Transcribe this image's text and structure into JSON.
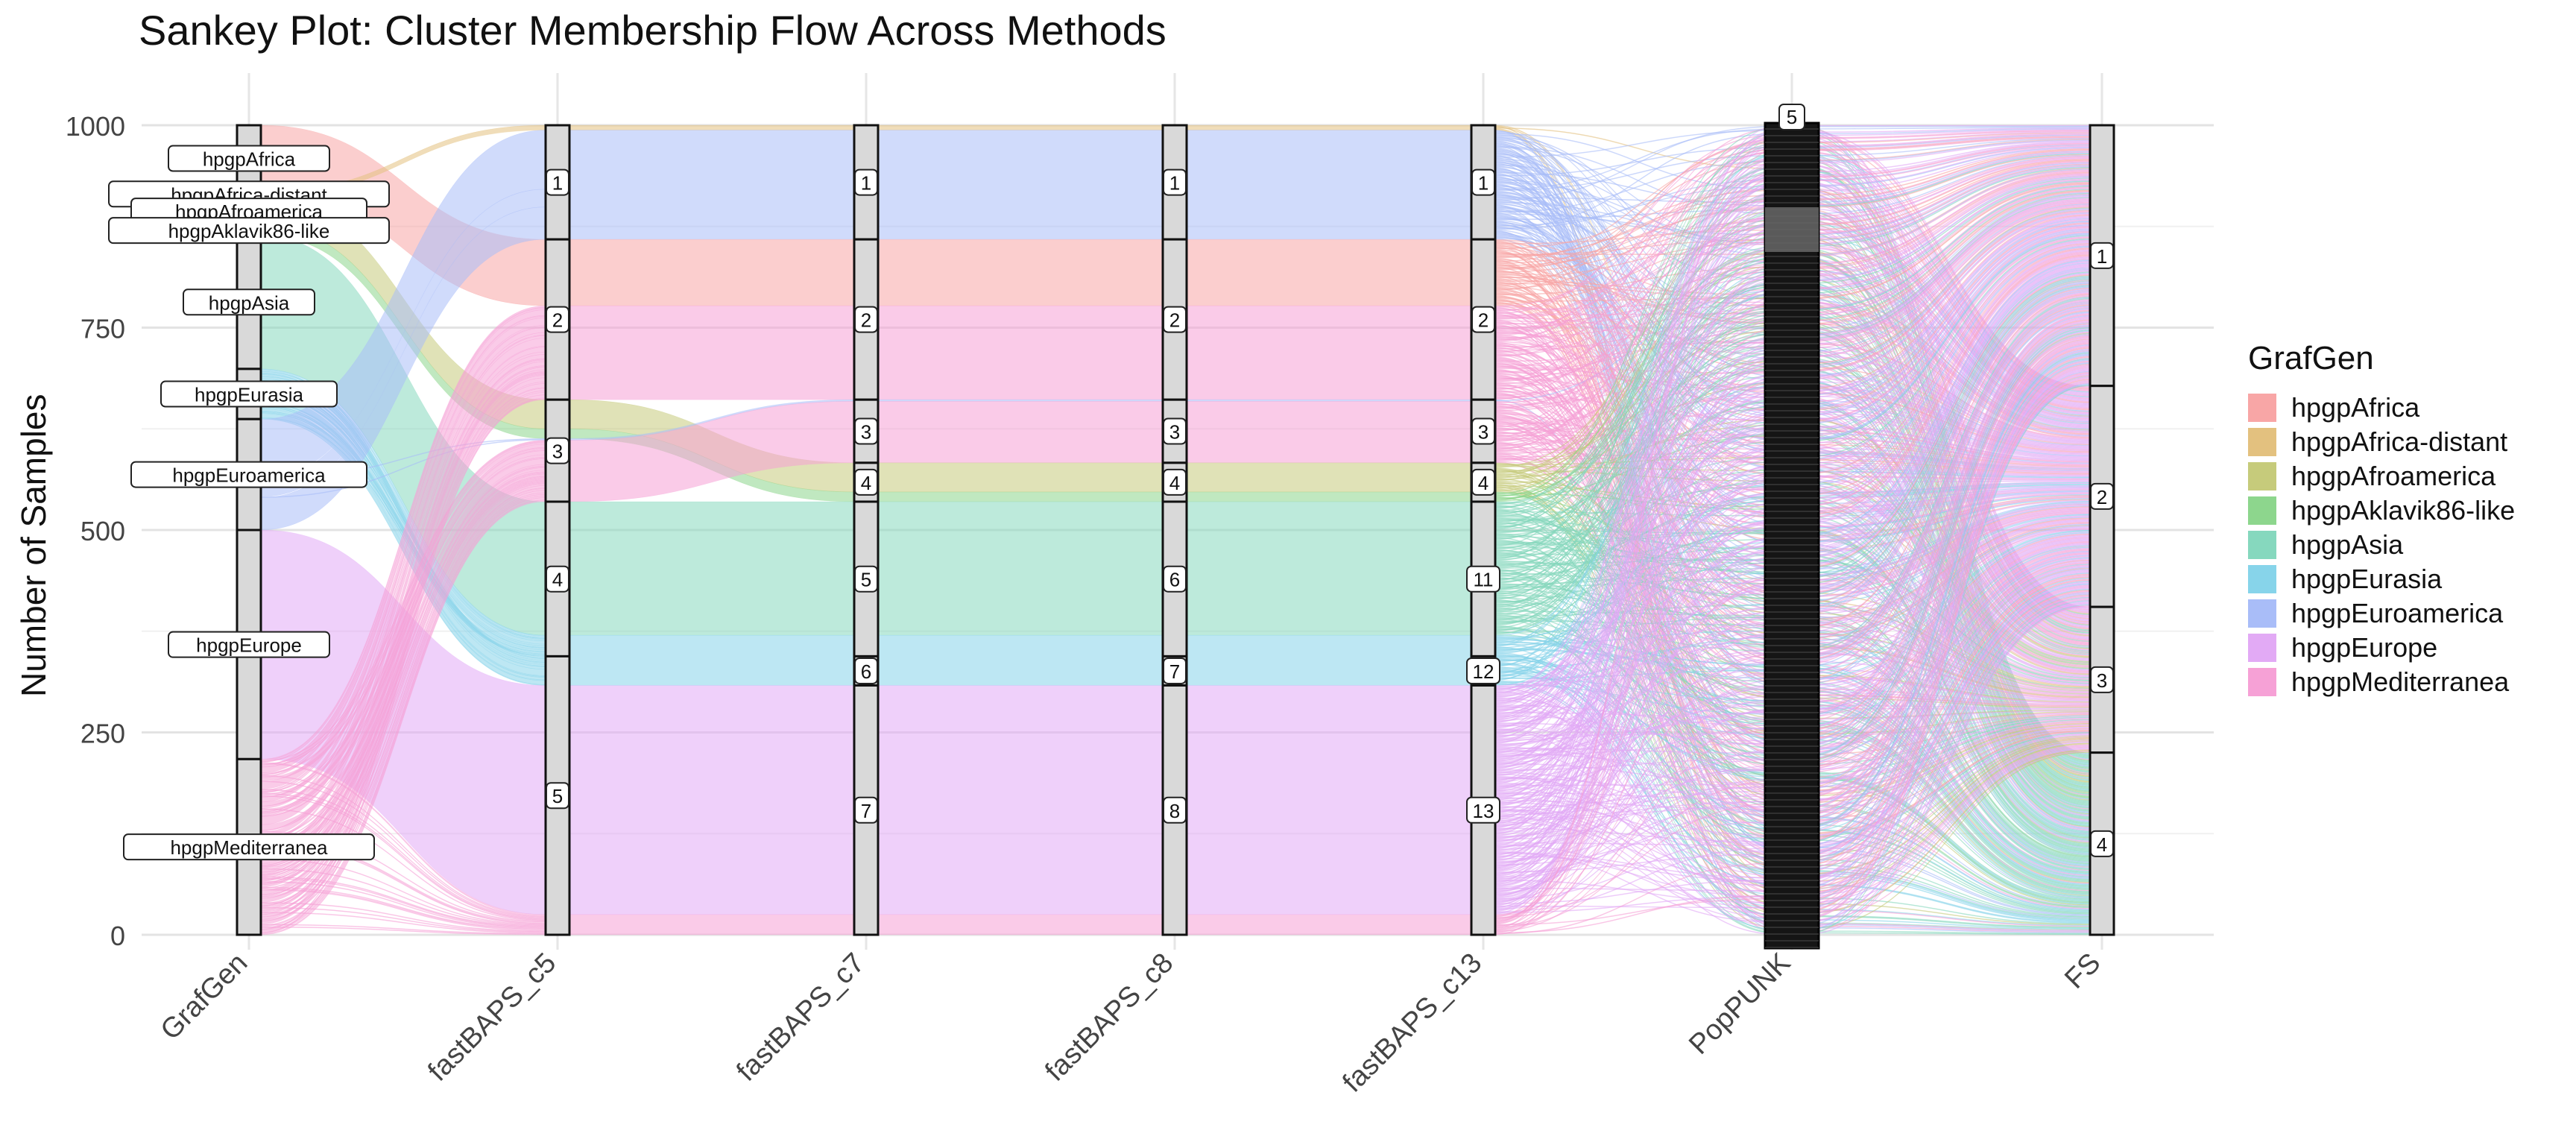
{
  "chart_data": {
    "type": "sankey",
    "title": "Sankey Plot: Cluster Membership Flow Across Methods",
    "ylabel": "Number of Samples",
    "xlabel": "",
    "ylim": [
      0,
      1000
    ],
    "y_ticks": [
      0,
      250,
      500,
      750,
      1000
    ],
    "axes": [
      "GrafGen",
      "fastBAPS_c5",
      "fastBAPS_c7",
      "fastBAPS_c8",
      "fastBAPS_c13",
      "PopPUNK",
      "FS"
    ],
    "legend_title": "GrafGen",
    "legend_position": "right",
    "grid": true,
    "fill_by": "GrafGen",
    "categories": [
      "hpgpAfrica",
      "hpgpAfrica-distant",
      "hpgpAfroamerica",
      "hpgpAklavik86-like",
      "hpgpAsia",
      "hpgpEurasia",
      "hpgpEuroamerica",
      "hpgpEurope",
      "hpgpMediterranea"
    ],
    "colors": {
      "hpgpAfrica": "#F8A6A6",
      "hpgpAfrica-distant": "#E3C17F",
      "hpgpAfroamerica": "#C6CB7B",
      "hpgpAklavik86-like": "#8DD68D",
      "hpgpAsia": "#86D8BE",
      "hpgpEurasia": "#87D4EA",
      "hpgpEuroamerica": "#A9BDF8",
      "hpgpEurope": "#E2AAF5",
      "hpgpMediterranea": "#F6A1D6"
    },
    "group_counts": {
      "hpgpAfrica": 82,
      "hpgpAfrica-distant": 6,
      "hpgpAfroamerica": 36,
      "hpgpAklavik86-like": 12,
      "hpgpAsia": 165,
      "hpgpEurasia": 62,
      "hpgpEuroamerica": 137,
      "hpgpEurope": 283,
      "hpgpMediterranea": 217
    },
    "strata": {
      "GrafGen": [
        {
          "label": "hpgpAfrica",
          "size": 82
        },
        {
          "label": "hpgpAfrica-distant",
          "size": 6
        },
        {
          "label": "hpgpAfroamerica",
          "size": 36
        },
        {
          "label": "hpgpAklavik86-like",
          "size": 12
        },
        {
          "label": "hpgpAsia",
          "size": 165
        },
        {
          "label": "hpgpEurasia",
          "size": 62
        },
        {
          "label": "hpgpEuroamerica",
          "size": 137
        },
        {
          "label": "hpgpEurope",
          "size": 283
        },
        {
          "label": "hpgpMediterranea",
          "size": 217
        }
      ],
      "fastBAPS_c5": [
        {
          "label": "1",
          "size": 140
        },
        {
          "label": "2",
          "size": 205
        },
        {
          "label": "3",
          "size": 115
        },
        {
          "label": "4",
          "size": 190
        },
        {
          "label": "5",
          "size": 350
        }
      ],
      "fastBAPS_c7": [
        {
          "label": "1",
          "size": 140
        },
        {
          "label": "2",
          "size": 205
        },
        {
          "label": "3",
          "size": 75
        },
        {
          "label": "4",
          "size": 40
        },
        {
          "label": "5",
          "size": 190
        },
        {
          "label": "6",
          "size": 55
        },
        {
          "label": "7",
          "size": 295
        }
      ],
      "fastBAPS_c8": [
        {
          "label": "1",
          "size": 140
        },
        {
          "label": "2",
          "size": 205
        },
        {
          "label": "3",
          "size": 75
        },
        {
          "label": "4",
          "size": 40
        },
        {
          "label": "6",
          "size": 190
        },
        {
          "label": "7",
          "size": 55
        },
        {
          "label": "8",
          "size": 295
        }
      ],
      "fastBAPS_c13": [
        {
          "label": "1",
          "size": 140
        },
        {
          "label": "2",
          "size": 205
        },
        {
          "label": "3",
          "size": 75
        },
        {
          "label": "4",
          "size": 40
        },
        {
          "label": "11",
          "size": 190
        },
        {
          "label": "12",
          "size": 55
        },
        {
          "label": "13",
          "size": 295
        }
      ],
      "PopPUNK": [
        {
          "label": "5",
          "size": 1000
        }
      ],
      "FS": [
        {
          "label": "1",
          "size": 340
        },
        {
          "label": "2",
          "size": 300
        },
        {
          "label": "3",
          "size": 125
        },
        {
          "label": "4",
          "size": 235
        }
      ]
    }
  }
}
